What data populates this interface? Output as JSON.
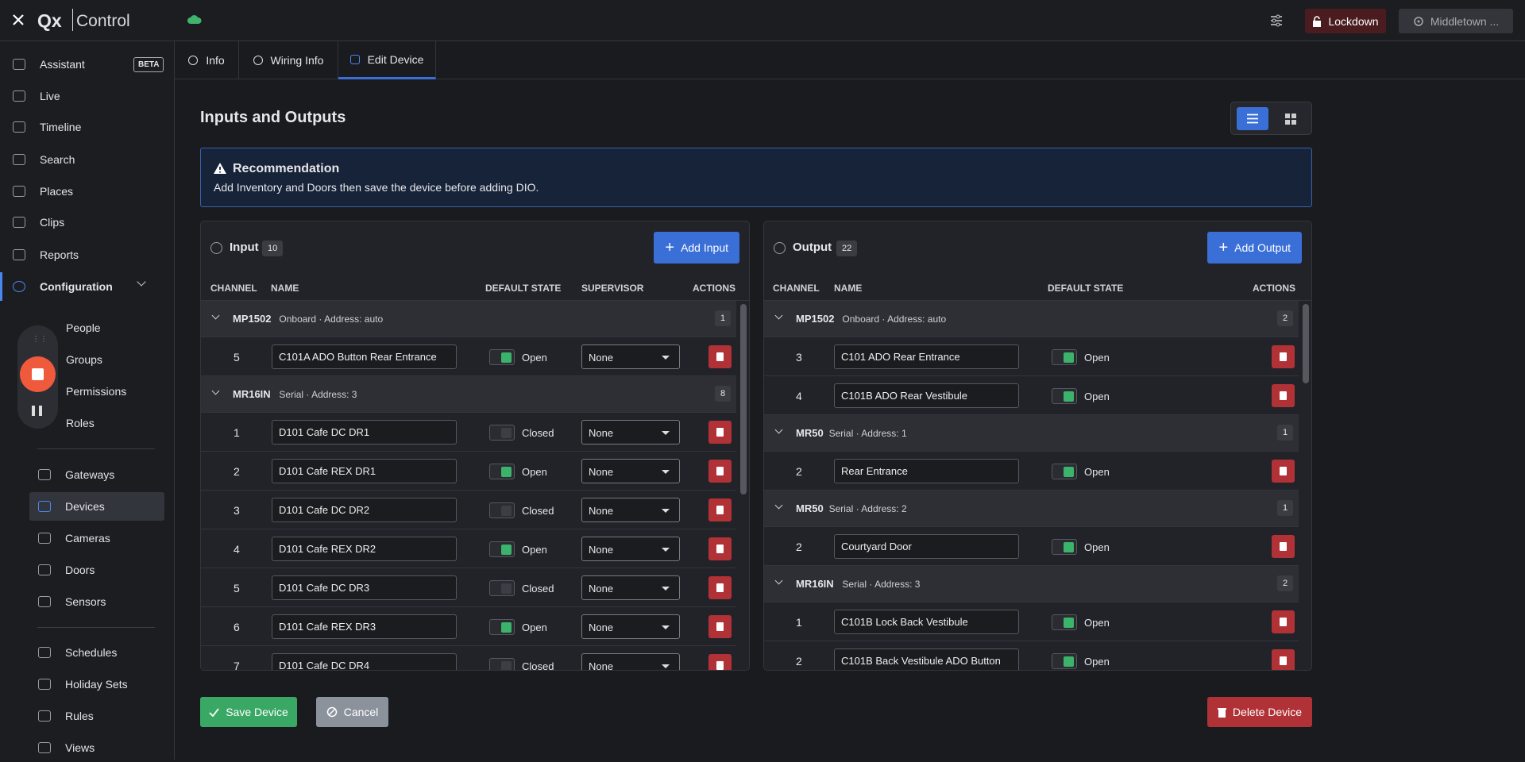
{
  "topbar": {
    "logo": "Qx",
    "product": "Control",
    "lockdown": "Lockdown",
    "site": "Middletown ..."
  },
  "sidebar": {
    "main": [
      {
        "label": "Assistant",
        "badge": "BETA"
      },
      {
        "label": "Live"
      },
      {
        "label": "Timeline"
      },
      {
        "label": "Search"
      },
      {
        "label": "Places"
      },
      {
        "label": "Clips"
      },
      {
        "label": "Reports"
      },
      {
        "label": "Configuration"
      }
    ],
    "groups": [
      [
        "People",
        "Groups",
        "Permissions",
        "Roles"
      ],
      [
        "Gateways",
        "Devices",
        "Cameras",
        "Doors",
        "Sensors"
      ],
      [
        "Schedules",
        "Holiday Sets",
        "Rules",
        "Views"
      ]
    ]
  },
  "tabs": [
    "Info",
    "Wiring Info",
    "Edit Device"
  ],
  "section": {
    "title": "Inputs and Outputs"
  },
  "recommendation": {
    "title": "Recommendation",
    "text": "Add Inventory and Doors then save the device before adding DIO."
  },
  "input_panel": {
    "title": "Input",
    "count": 10,
    "add": "Add Input",
    "columns": [
      "CHANNEL",
      "NAME",
      "DEFAULT STATE",
      "SUPERVISOR",
      "ACTIONS"
    ],
    "groups": [
      {
        "name": "MP1502",
        "meta": "Onboard · Address: auto",
        "count": 1,
        "rows": [
          {
            "channel": 5,
            "name": "C101A ADO Button Rear Entrance",
            "state": "Open",
            "on": true,
            "supervisor": "None"
          }
        ]
      },
      {
        "name": "MR16IN",
        "meta": "Serial · Address: 3",
        "count": 8,
        "rows": [
          {
            "channel": 1,
            "name": "D101 Cafe DC DR1",
            "state": "Closed",
            "on": false,
            "supervisor": "None"
          },
          {
            "channel": 2,
            "name": "D101 Cafe REX DR1",
            "state": "Open",
            "on": true,
            "supervisor": "None"
          },
          {
            "channel": 3,
            "name": "D101 Cafe DC DR2",
            "state": "Closed",
            "on": false,
            "supervisor": "None"
          },
          {
            "channel": 4,
            "name": "D101 Cafe REX DR2",
            "state": "Open",
            "on": true,
            "supervisor": "None"
          },
          {
            "channel": 5,
            "name": "D101 Cafe DC DR3",
            "state": "Closed",
            "on": false,
            "supervisor": "None"
          },
          {
            "channel": 6,
            "name": "D101 Cafe REX DR3",
            "state": "Open",
            "on": true,
            "supervisor": "None"
          },
          {
            "channel": 7,
            "name": "D101 Cafe DC DR4",
            "state": "Closed",
            "on": false,
            "supervisor": "None"
          }
        ]
      }
    ]
  },
  "output_panel": {
    "title": "Output",
    "count": 22,
    "add": "Add Output",
    "columns": [
      "CHANNEL",
      "NAME",
      "DEFAULT STATE",
      "ACTIONS"
    ],
    "groups": [
      {
        "name": "MP1502",
        "meta": "Onboard · Address: auto",
        "count": 2,
        "rows": [
          {
            "channel": 3,
            "name": "C101 ADO Rear Entrance",
            "state": "Open",
            "on": true
          },
          {
            "channel": 4,
            "name": "C101B ADO Rear Vestibule",
            "state": "Open",
            "on": true
          }
        ]
      },
      {
        "name": "MR50",
        "meta": "Serial · Address: 1",
        "count": 1,
        "rows": [
          {
            "channel": 2,
            "name": "Rear Entrance",
            "state": "Open",
            "on": true
          }
        ]
      },
      {
        "name": "MR50",
        "meta": "Serial · Address: 2",
        "count": 1,
        "rows": [
          {
            "channel": 2,
            "name": "Courtyard Door",
            "state": "Open",
            "on": true
          }
        ]
      },
      {
        "name": "MR16IN",
        "meta": "Serial · Address: 3",
        "count": 2,
        "rows": [
          {
            "channel": 1,
            "name": "C101B Lock Back Vestibule",
            "state": "Open",
            "on": true
          },
          {
            "channel": 2,
            "name": "C101B Back Vestibule ADO Button",
            "state": "Open",
            "on": true
          }
        ]
      }
    ]
  },
  "actions": {
    "save": "Save Device",
    "cancel": "Cancel",
    "delete": "Delete Device"
  }
}
